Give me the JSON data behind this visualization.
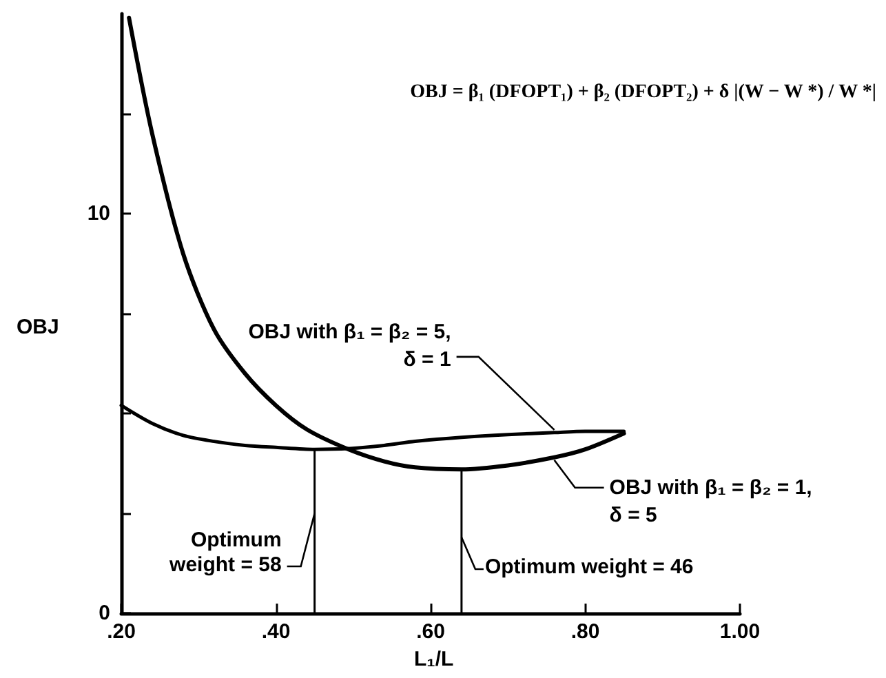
{
  "chart_data": {
    "type": "line",
    "xlabel": "L₁/L",
    "ylabel": "OBJ",
    "xlim": [
      0.2,
      1.0
    ],
    "xticks": [
      {
        "value": 0.2,
        "label": ".20"
      },
      {
        "value": 0.4,
        "label": ".40"
      },
      {
        "value": 0.6,
        "label": ".60"
      },
      {
        "value": 0.8,
        "label": ".80"
      },
      {
        "value": 1.0,
        "label": "1.00"
      }
    ],
    "ylim": [
      0,
      15
    ],
    "yticks": [
      0,
      {
        "value": 2.5,
        "label": null
      },
      {
        "value": 5,
        "label": null
      },
      {
        "value": 7.5,
        "label": null
      },
      10,
      {
        "value": 12.5,
        "label": null
      }
    ],
    "grid": false,
    "legend": false,
    "marker": "none",
    "line_style": "solid",
    "series": [
      {
        "name": "OBJ with β₁ = β₂ = 1, δ = 5",
        "color": "#000000",
        "x": [
          0.21,
          0.24,
          0.28,
          0.32,
          0.36,
          0.4,
          0.44,
          0.494,
          0.54,
          0.58,
          0.64,
          0.7,
          0.76,
          0.8,
          0.85
        ],
        "values": [
          14.9,
          12.0,
          9.0,
          7.1,
          6.0,
          5.2,
          4.6,
          4.1,
          3.8,
          3.65,
          3.6,
          3.7,
          3.9,
          4.1,
          4.5
        ]
      },
      {
        "name": "OBJ with β₁ = β₂ = 5, δ = 1",
        "color": "#000000",
        "x": [
          0.2,
          0.24,
          0.28,
          0.32,
          0.36,
          0.4,
          0.45,
          0.494,
          0.54,
          0.58,
          0.64,
          0.7,
          0.76,
          0.8,
          0.85
        ],
        "values": [
          5.2,
          4.75,
          4.45,
          4.3,
          4.2,
          4.15,
          4.1,
          4.12,
          4.2,
          4.3,
          4.4,
          4.47,
          4.52,
          4.55,
          4.55
        ]
      },
      {
        "color": "#000000",
        "x": [
          0.45,
          0.45
        ],
        "values": [
          0,
          4.1
        ]
      },
      {
        "color": "#000000",
        "x": [
          0.64,
          0.64
        ],
        "values": [
          0,
          3.6
        ]
      }
    ],
    "annotations": [
      "OBJ = β₁ (DFOPT₁) + β₂ (DFOPT₂) + δ |(W − W *) / W *|",
      {
        "text": "Optimum weight = 58",
        "x": 0.45,
        "y": 2.5
      },
      {
        "text": "Optimum weight = 46",
        "x": 0.64,
        "y": 1.9
      }
    ]
  }
}
